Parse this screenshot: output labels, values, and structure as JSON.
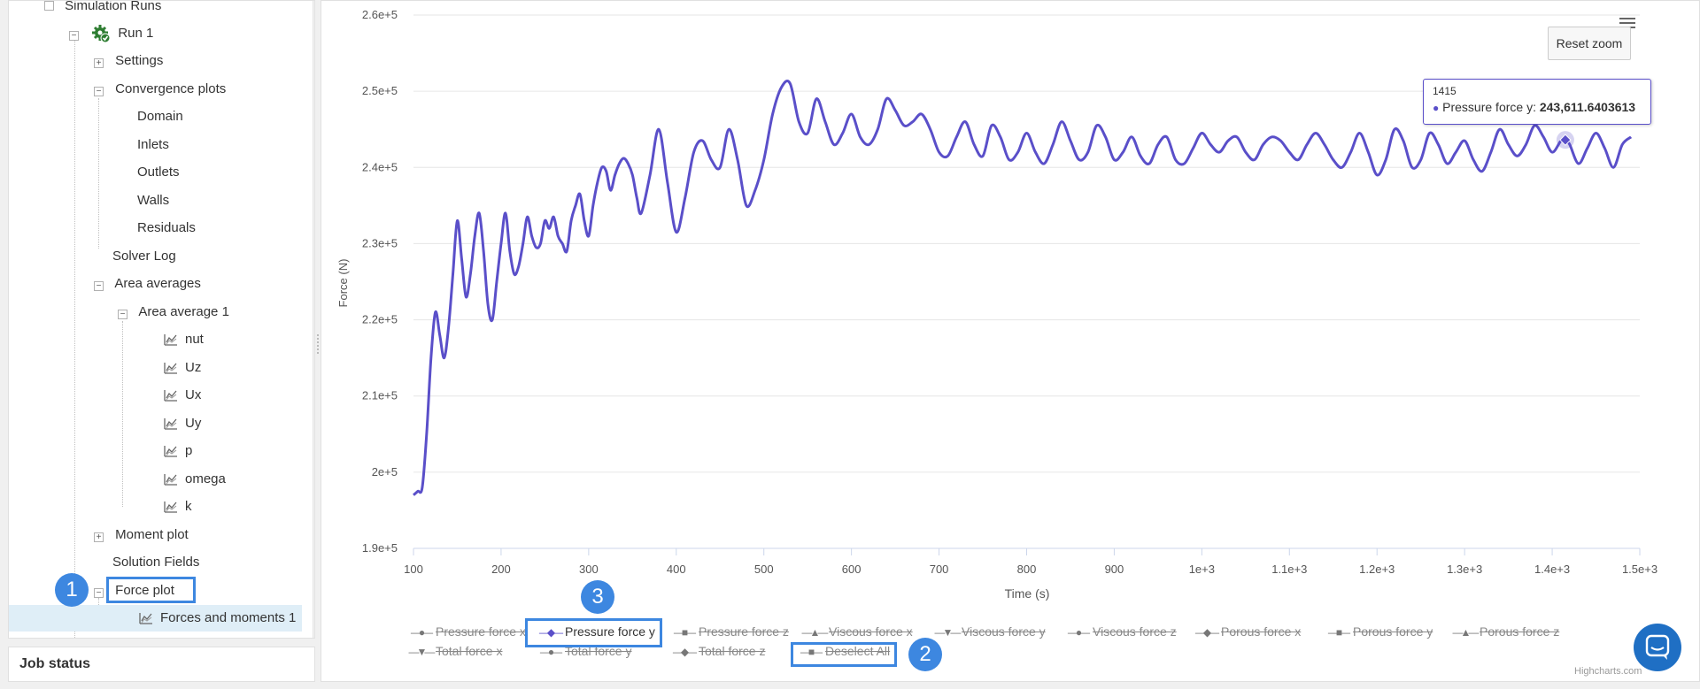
{
  "tree": {
    "root_label": "Simulation Runs",
    "run_label": "Run 1",
    "items": [
      {
        "label": "Settings"
      },
      {
        "label": "Convergence plots"
      },
      {
        "label": "Domain"
      },
      {
        "label": "Inlets"
      },
      {
        "label": "Outlets"
      },
      {
        "label": "Walls"
      },
      {
        "label": "Residuals"
      },
      {
        "label": "Solver Log"
      },
      {
        "label": "Area averages"
      },
      {
        "label": "Area average 1"
      },
      {
        "label": "nut"
      },
      {
        "label": "Uz"
      },
      {
        "label": "Ux"
      },
      {
        "label": "Uy"
      },
      {
        "label": "p"
      },
      {
        "label": "omega"
      },
      {
        "label": "k"
      },
      {
        "label": "Moment plot"
      },
      {
        "label": "Solution Fields"
      },
      {
        "label": "Force plot"
      },
      {
        "label": "Forces and moments 1"
      }
    ]
  },
  "job_status": "Job status",
  "chart": {
    "reset_zoom": "Reset zoom",
    "credits": "Highcharts.com",
    "tooltip": {
      "x": "1415",
      "series": "Pressure force y:",
      "value": "243,611.6403613"
    },
    "legend": [
      {
        "label": "Pressure force x",
        "symbol": "●",
        "active": false
      },
      {
        "label": "Pressure force y",
        "symbol": "◆",
        "active": true
      },
      {
        "label": "Pressure force z",
        "symbol": "■",
        "active": false
      },
      {
        "label": "Viscous force x",
        "symbol": "▲",
        "active": false
      },
      {
        "label": "Viscous force y",
        "symbol": "▼",
        "active": false
      },
      {
        "label": "Viscous force z",
        "symbol": "●",
        "active": false
      },
      {
        "label": "Porous force x",
        "symbol": "◆",
        "active": false
      },
      {
        "label": "Porous force y",
        "symbol": "■",
        "active": false
      },
      {
        "label": "Porous force z",
        "symbol": "▲",
        "active": false
      },
      {
        "label": "Total force x",
        "symbol": "▼",
        "active": false
      },
      {
        "label": "Total force y",
        "symbol": "●",
        "active": false
      },
      {
        "label": "Total force z",
        "symbol": "◆",
        "active": false
      },
      {
        "label": "Deselect All",
        "symbol": "■",
        "active": false
      }
    ],
    "badges": [
      "1",
      "2",
      "3"
    ]
  },
  "chart_data": {
    "type": "line",
    "title": "",
    "xlabel": "Time (s)",
    "ylabel": "Force (N)",
    "xlim": [
      100,
      1500
    ],
    "ylim": [
      190000,
      260000
    ],
    "x_ticks": [
      "100",
      "200",
      "300",
      "400",
      "500",
      "600",
      "700",
      "800",
      "900",
      "1e+3",
      "1.1e+3",
      "1.2e+3",
      "1.3e+3",
      "1.4e+3",
      "1.5e+3"
    ],
    "y_ticks": [
      "1.9e+5",
      "2e+5",
      "2.1e+5",
      "2.2e+5",
      "2.3e+5",
      "2.4e+5",
      "2.5e+5",
      "2.6e+5"
    ],
    "grid": true,
    "color": "#5a4fc9",
    "series": [
      {
        "name": "Pressure force y",
        "x": [
          100,
          105,
          110,
          115,
          120,
          125,
          130,
          135,
          140,
          145,
          150,
          155,
          160,
          165,
          170,
          175,
          180,
          185,
          190,
          195,
          200,
          205,
          210,
          215,
          220,
          225,
          230,
          235,
          240,
          245,
          250,
          255,
          260,
          265,
          270,
          275,
          280,
          285,
          290,
          295,
          300,
          305,
          310,
          315,
          320,
          325,
          330,
          335,
          340,
          345,
          350,
          355,
          360,
          370,
          380,
          390,
          400,
          410,
          420,
          430,
          440,
          450,
          460,
          470,
          480,
          490,
          500,
          510,
          520,
          530,
          540,
          550,
          560,
          570,
          580,
          590,
          600,
          610,
          620,
          630,
          640,
          650,
          660,
          670,
          680,
          690,
          700,
          710,
          720,
          730,
          740,
          750,
          760,
          770,
          780,
          790,
          800,
          810,
          820,
          830,
          840,
          850,
          860,
          870,
          880,
          890,
          900,
          910,
          920,
          930,
          940,
          950,
          960,
          970,
          980,
          990,
          1000,
          1010,
          1020,
          1030,
          1040,
          1050,
          1060,
          1070,
          1080,
          1090,
          1100,
          1110,
          1120,
          1130,
          1140,
          1150,
          1160,
          1170,
          1180,
          1190,
          1200,
          1210,
          1220,
          1230,
          1240,
          1250,
          1260,
          1270,
          1280,
          1290,
          1300,
          1310,
          1320,
          1330,
          1340,
          1350,
          1360,
          1370,
          1380,
          1390,
          1400,
          1410,
          1415,
          1420,
          1430,
          1440,
          1450,
          1460,
          1470,
          1480,
          1490
        ],
        "values": [
          197000,
          197500,
          198000,
          205000,
          215000,
          221000,
          218000,
          215000,
          219000,
          226000,
          233000,
          228000,
          223000,
          226000,
          231000,
          234000,
          229000,
          222000,
          220000,
          225000,
          230000,
          234000,
          229000,
          226000,
          227000,
          230000,
          233500,
          231000,
          229500,
          230000,
          233000,
          232000,
          233500,
          231000,
          230000,
          229000,
          233000,
          235000,
          236500,
          233000,
          231000,
          235000,
          238000,
          240000,
          239500,
          237000,
          239000,
          240500,
          241200,
          240500,
          239000,
          236000,
          234000,
          239000,
          245000,
          238000,
          231500,
          236000,
          242000,
          243500,
          241000,
          240000,
          245000,
          241000,
          235000,
          237000,
          241000,
          247000,
          250500,
          251000,
          246000,
          244500,
          249000,
          246000,
          243000,
          244500,
          247000,
          244000,
          243000,
          245000,
          249000,
          247500,
          245500,
          246000,
          247000,
          245000,
          242000,
          241500,
          244000,
          246000,
          243000,
          241500,
          245500,
          244000,
          241000,
          242000,
          244500,
          242000,
          240500,
          243000,
          246000,
          243500,
          241000,
          242000,
          245500,
          244000,
          241000,
          242000,
          244000,
          241500,
          240500,
          243000,
          244000,
          241000,
          240500,
          242500,
          244500,
          243000,
          242000,
          243500,
          244000,
          242000,
          241000,
          243000,
          244000,
          243500,
          242000,
          241000,
          243000,
          244500,
          243000,
          241000,
          240000,
          242000,
          244500,
          242000,
          239000,
          241000,
          245000,
          243500,
          240000,
          241000,
          244500,
          243000,
          240500,
          242000,
          243500,
          241000,
          239500,
          242000,
          245000,
          243000,
          241500,
          243000,
          245500,
          244000,
          242000,
          243500,
          243611.64,
          243000,
          240500,
          242500,
          244500,
          242500,
          240000,
          243000,
          244000
        ]
      }
    ]
  }
}
